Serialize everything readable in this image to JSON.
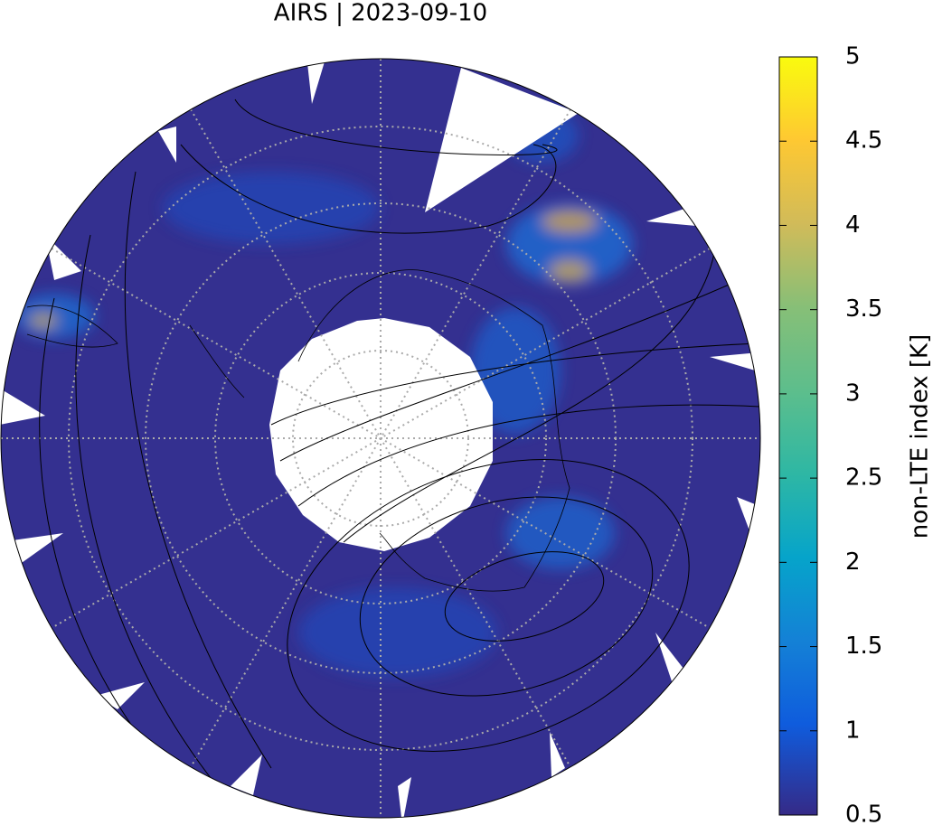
{
  "title": "AIRS | 2023-09-10",
  "colorbar": {
    "label": "non-LTE index [K]",
    "lim": [
      0.5,
      5
    ],
    "ticks": [
      0.5,
      1,
      1.5,
      2,
      2.5,
      3,
      3.5,
      4,
      4.5,
      5
    ]
  }
}
